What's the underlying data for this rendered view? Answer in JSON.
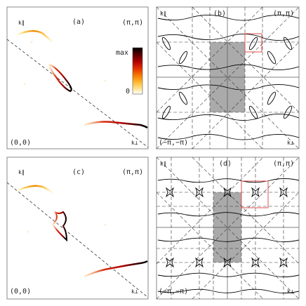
{
  "panels": [
    {
      "id": "a",
      "label": "(a)",
      "k_par": "k∥",
      "k_perp": "k⊥",
      "corner_tr": "(π,π)",
      "corner_bl": "(0,0)"
    },
    {
      "id": "b",
      "label": "(b)",
      "k_par": "k∥",
      "k_perp": "k⊥",
      "corner_tr": "(π,π)",
      "corner_bl": "(−π,−π)"
    },
    {
      "id": "c",
      "label": "(c)",
      "k_par": "k∥",
      "k_perp": "k⊥",
      "corner_tr": "(π,π)",
      "corner_bl": "(0,0)"
    },
    {
      "id": "d",
      "label": "(d)",
      "k_par": "k∥",
      "k_perp": "k⊥",
      "corner_tr": "(π,π)",
      "corner_bl": "(−π,−π)"
    }
  ],
  "colorbar": {
    "max_label": "max",
    "min_label": "0",
    "colors": [
      "#000000",
      "#5a0000",
      "#b00000",
      "#e23000",
      "#f77a00",
      "#ffbb33",
      "#ffe8a0",
      "#ffffff"
    ]
  },
  "colors": {
    "frame": "#888888",
    "shade": "#aaaaaa",
    "highlight_box": "#e05050",
    "dashed": "#333333",
    "contour": "#000000"
  }
}
